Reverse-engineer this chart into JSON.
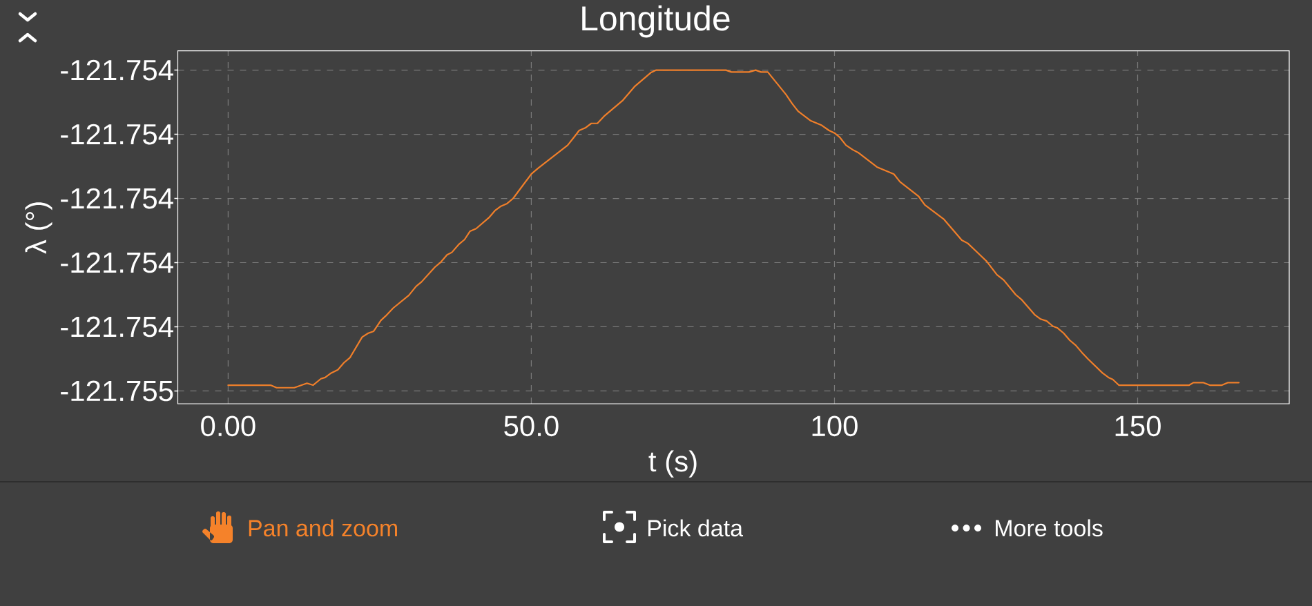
{
  "chart_data": {
    "type": "line",
    "title": "Longitude",
    "xlabel": "t (s)",
    "ylabel": "λ (°)",
    "x": [
      0,
      7.0,
      8.0,
      10.9,
      13.0,
      14.0,
      15.3,
      16.0,
      17.0,
      18.1,
      19.1,
      20.1,
      22.1,
      23.1,
      24.0,
      25.2,
      26.0,
      27.2,
      29.8,
      31.0,
      31.9,
      34.1,
      35.1,
      36.1,
      36.9,
      38.1,
      39.0,
      39.9,
      40.9,
      43.0,
      44.0,
      45.0,
      46.0,
      47.0,
      48.1,
      50.0,
      51.1,
      56.0,
      57.0,
      57.9,
      58.9,
      59.9,
      60.9,
      62.1,
      65.1,
      67.1,
      69.7,
      70.6,
      82.1,
      83.0,
      85.9,
      87.0,
      87.9,
      89.0,
      92.0,
      93.0,
      94.0,
      96.1,
      97.9,
      99.1,
      100.0,
      100.9,
      101.9,
      103.0,
      104.0,
      107.0,
      109.8,
      110.8,
      113.9,
      114.9,
      118.0,
      121.0,
      122.0,
      123.0,
      124.1,
      125.1,
      126.8,
      127.9,
      129.9,
      130.9,
      133.0,
      134.0,
      135.0,
      136.0,
      136.8,
      137.8,
      138.8,
      139.8,
      140.8,
      141.8,
      144.2,
      145.2,
      145.9,
      146.9,
      158.5,
      159.2,
      160.8,
      161.9,
      163.9,
      164.9,
      166.7
    ],
    "values": [
      -121.754491,
      -121.754491,
      -121.754495,
      -121.754495,
      -121.754488,
      -121.754491,
      -121.754481,
      -121.754479,
      -121.754472,
      -121.754467,
      -121.754456,
      -121.754448,
      -121.754416,
      -121.75441,
      -121.754407,
      -121.75439,
      -121.754383,
      -121.754371,
      -121.754351,
      -121.754337,
      -121.75433,
      -121.754307,
      -121.754299,
      -121.754288,
      -121.754284,
      -121.754271,
      -121.754264,
      -121.754251,
      -121.754247,
      -121.75423,
      -121.754219,
      -121.754212,
      -121.754208,
      -121.7542,
      -121.754186,
      -121.754162,
      -121.754153,
      -121.754117,
      -121.754105,
      -121.754094,
      -121.75409,
      -121.754083,
      -121.754083,
      -121.754071,
      -121.754047,
      -121.754025,
      -121.754004,
      -121.754,
      -121.754,
      -121.754003,
      -121.754003,
      -121.754,
      -121.754003,
      -121.754003,
      -121.754038,
      -121.754052,
      -121.754064,
      -121.754079,
      -121.754086,
      -121.754094,
      -121.754098,
      -121.754105,
      -121.754117,
      -121.754124,
      -121.754129,
      -121.754151,
      -121.754162,
      -121.754174,
      -121.754197,
      -121.75421,
      -121.754232,
      -121.754265,
      -121.75427,
      -121.754279,
      -121.754289,
      -121.754298,
      -121.754319,
      -121.754327,
      -121.75435,
      -121.754358,
      -121.754381,
      -121.754388,
      -121.754391,
      -121.754399,
      -121.754402,
      -121.75441,
      -121.754421,
      -121.754429,
      -121.75444,
      -121.75445,
      -121.754472,
      -121.754479,
      -121.754482,
      -121.754491,
      -121.754491,
      -121.754487,
      -121.754487,
      -121.754491,
      -121.754491,
      -121.754487,
      -121.754487
    ],
    "color": "#f07f2a",
    "xlim": [
      -8.3,
      175.0
    ],
    "xticks": [
      {
        "value": 0,
        "label": "0.00"
      },
      {
        "value": 50,
        "label": "50.0"
      },
      100,
      150
    ],
    "ylim": [
      -121.75452,
      -121.75397
    ],
    "yticks": [
      {
        "value": -121.7545,
        "label": "-121.755"
      },
      {
        "value": -121.7544,
        "label": "-121.754"
      },
      {
        "value": -121.7543,
        "label": "-121.754"
      },
      {
        "value": -121.7542,
        "label": "-121.754"
      },
      {
        "value": -121.7541,
        "label": "-121.754"
      },
      -121.754
    ],
    "grid": true,
    "annotations": [
      "Pan and zoom",
      "Pick data",
      "More tools"
    ]
  }
}
